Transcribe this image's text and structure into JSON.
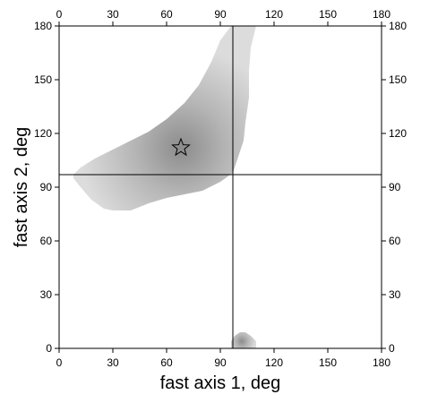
{
  "chart_data": {
    "type": "heatmap",
    "title": "",
    "xlabel": "fast axis 1, deg",
    "ylabel": "fast axis 2, deg",
    "xlim": [
      0,
      180
    ],
    "ylim": [
      0,
      180
    ],
    "xticks": [
      0,
      30,
      60,
      90,
      120,
      150,
      180
    ],
    "yticks": [
      0,
      30,
      60,
      90,
      120,
      150,
      180
    ],
    "tick_labels_on_all_sides": true,
    "grid": false,
    "crosshair": {
      "x": 97,
      "y": 97,
      "color": "#000000"
    },
    "marker": {
      "shape": "star",
      "x": 68,
      "y": 112
    },
    "regions": [
      {
        "name": "main-lobe",
        "boundary": [
          [
            8,
            97
          ],
          [
            12,
            101
          ],
          [
            20,
            106
          ],
          [
            30,
            111
          ],
          [
            40,
            116
          ],
          [
            50,
            121
          ],
          [
            60,
            128
          ],
          [
            70,
            137
          ],
          [
            78,
            147
          ],
          [
            85,
            160
          ],
          [
            90,
            172
          ],
          [
            96,
            180
          ],
          [
            110,
            180
          ],
          [
            107,
            168
          ],
          [
            106,
            155
          ],
          [
            106,
            140
          ],
          [
            104,
            126
          ],
          [
            103,
            116
          ],
          [
            100,
            107
          ],
          [
            97,
            98
          ],
          [
            90,
            93
          ],
          [
            80,
            88
          ],
          [
            70,
            86
          ],
          [
            60,
            84
          ],
          [
            50,
            81
          ],
          [
            40,
            77
          ],
          [
            30,
            77
          ],
          [
            25,
            78
          ],
          [
            18,
            83
          ],
          [
            12,
            90
          ],
          [
            8,
            95
          ]
        ],
        "peak": {
          "x": 68,
          "y": 112
        }
      },
      {
        "name": "bottom-lobe",
        "boundary": [
          [
            96,
            0
          ],
          [
            96,
            4
          ],
          [
            98,
            7
          ],
          [
            101,
            9
          ],
          [
            104,
            9
          ],
          [
            107,
            7
          ],
          [
            110,
            4
          ],
          [
            110,
            0
          ]
        ],
        "peak": {
          "x": 102,
          "y": 4
        }
      }
    ],
    "colors": {
      "edge": "#dcdcdc",
      "peak": "#8c8c8c",
      "frame": "#000000"
    }
  }
}
